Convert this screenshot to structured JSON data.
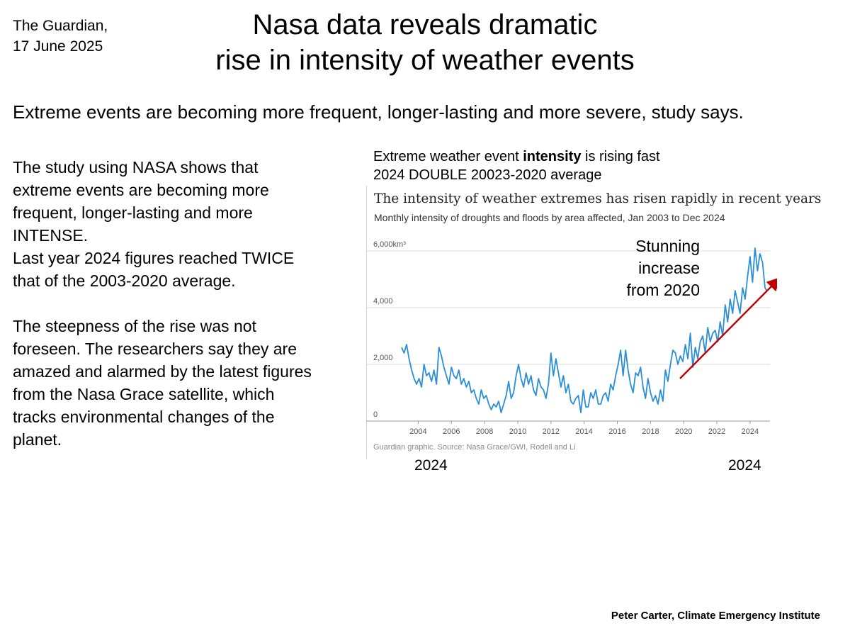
{
  "source": {
    "line1": "The Guardian,",
    "line2": "17 June 2025"
  },
  "title": {
    "line1": "Nasa data reveals dramatic",
    "line2": "rise in intensity of weather events"
  },
  "subtitle": "Extreme events are becoming more frequent, longer-lasting and more severe, study says.",
  "body": {
    "lines1": [
      "The study using NASA  shows that",
      "extreme events are becoming more",
      "frequent, longer-lasting and more",
      "INTENSE.",
      "Last year 2024  figures reached TWICE",
      "that of the 2003-2020 average."
    ],
    "lines2": [
      "The steepness of the rise was not",
      "foreseen. The researchers say they are",
      "amazed and alarmed by the latest figures",
      "from the Nasa Grace satellite, which",
      "tracks environmental changes of the",
      "planet."
    ]
  },
  "chart_caption": {
    "prefix": "Extreme weather event ",
    "bold": "intensity",
    "suffix": " is rising fast",
    "line2": "2024 DOUBLE 20023-2020 average"
  },
  "chart_data": {
    "type": "line",
    "title": "The intensity of weather extremes has risen rapidly in recent years",
    "subtitle": "Monthly intensity of droughts and floods by area affected, Jan 2003 to Dec 2024",
    "source_note": "Guardian graphic. Source: Nasa Grace/GWI, Rodell and Li",
    "xlabel": "",
    "ylabel": "",
    "xlim": [
      2003,
      2025.2
    ],
    "ylim": [
      0,
      6000
    ],
    "yticks": [
      {
        "value": 0,
        "label": "0"
      },
      {
        "value": 2000,
        "label": "2,000"
      },
      {
        "value": 4000,
        "label": "4,000"
      },
      {
        "value": 6000,
        "label": "6,000km³"
      }
    ],
    "xticks": [
      2004,
      2006,
      2008,
      2010,
      2012,
      2014,
      2016,
      2018,
      2020,
      2022,
      2024
    ],
    "xtick_labels": [
      "2004",
      "2006",
      "2008",
      "2010",
      "2012",
      "2014",
      "2016",
      "2018",
      "2020",
      "2022",
      "2024"
    ],
    "series": [
      {
        "name": "Monthly intensity",
        "color": "#2a8fd6",
        "x": [
          2003.0,
          2003.15,
          2003.3,
          2003.45,
          2003.6,
          2003.75,
          2003.9,
          2004.05,
          2004.2,
          2004.35,
          2004.5,
          2004.65,
          2004.8,
          2004.95,
          2005.1,
          2005.25,
          2005.4,
          2005.55,
          2005.7,
          2005.85,
          2006.0,
          2006.15,
          2006.3,
          2006.45,
          2006.6,
          2006.75,
          2006.9,
          2007.05,
          2007.2,
          2007.35,
          2007.5,
          2007.65,
          2007.8,
          2007.95,
          2008.1,
          2008.25,
          2008.4,
          2008.55,
          2008.7,
          2008.85,
          2009.0,
          2009.15,
          2009.3,
          2009.45,
          2009.6,
          2009.75,
          2009.9,
          2010.05,
          2010.2,
          2010.35,
          2010.5,
          2010.65,
          2010.8,
          2010.95,
          2011.1,
          2011.25,
          2011.4,
          2011.55,
          2011.7,
          2011.85,
          2012.0,
          2012.15,
          2012.3,
          2012.45,
          2012.6,
          2012.75,
          2012.9,
          2013.05,
          2013.2,
          2013.35,
          2013.5,
          2013.65,
          2013.8,
          2013.95,
          2014.1,
          2014.25,
          2014.4,
          2014.55,
          2014.7,
          2014.85,
          2015.0,
          2015.15,
          2015.3,
          2015.45,
          2015.6,
          2015.75,
          2015.9,
          2016.05,
          2016.2,
          2016.35,
          2016.5,
          2016.65,
          2016.8,
          2016.95,
          2017.1,
          2017.25,
          2017.4,
          2017.55,
          2017.7,
          2017.85,
          2018.0,
          2018.15,
          2018.3,
          2018.45,
          2018.6,
          2018.75,
          2018.9,
          2019.05,
          2019.2,
          2019.35,
          2019.5,
          2019.65,
          2019.8,
          2019.95,
          2020.1,
          2020.25,
          2020.4,
          2020.55,
          2020.7,
          2020.85,
          2021.0,
          2021.15,
          2021.3,
          2021.45,
          2021.6,
          2021.75,
          2021.9,
          2022.05,
          2022.2,
          2022.35,
          2022.5,
          2022.65,
          2022.8,
          2022.95,
          2023.1,
          2023.25,
          2023.4,
          2023.55,
          2023.7,
          2023.85,
          2024.0,
          2024.15,
          2024.3,
          2024.45,
          2024.6,
          2024.75,
          2024.9,
          2025.0
        ],
        "y": [
          2600,
          2400,
          2700,
          2200,
          1800,
          1500,
          1300,
          1500,
          1200,
          2000,
          1600,
          1700,
          1400,
          1800,
          1300,
          2600,
          2300,
          1900,
          1600,
          1300,
          1900,
          1600,
          1500,
          1800,
          1300,
          1500,
          1200,
          1400,
          1000,
          1100,
          800,
          600,
          1100,
          800,
          900,
          600,
          400,
          600,
          500,
          700,
          300,
          600,
          900,
          1400,
          800,
          1000,
          1600,
          2000,
          1500,
          1200,
          1700,
          1300,
          1600,
          1100,
          900,
          1500,
          1200,
          1100,
          800,
          1300,
          2400,
          1600,
          2200,
          1700,
          1200,
          1600,
          1000,
          1300,
          700,
          600,
          800,
          900,
          300,
          1100,
          500,
          500,
          1000,
          800,
          1100,
          600,
          600,
          900,
          1000,
          700,
          1300,
          1100,
          1600,
          2000,
          2500,
          1600,
          2500,
          1800,
          1300,
          1000,
          1700,
          1600,
          1900,
          1200,
          800,
          1500,
          1000,
          700,
          900,
          600,
          1100,
          700,
          1800,
          1400,
          2000,
          2500,
          2400,
          2000,
          2300,
          2100,
          2700,
          2200,
          3100,
          1900,
          2600,
          2200,
          2800,
          3000,
          2400,
          3300,
          2800,
          3100,
          3200,
          2800,
          3500,
          3000,
          4100,
          3500,
          4300,
          3800,
          4600,
          4200,
          3800,
          4700,
          4300,
          5100,
          5800,
          4900,
          6100,
          5300,
          5900,
          5600,
          4700,
          4600
        ]
      }
    ]
  },
  "annotation": [
    "Stunning",
    "increase",
    "from 2020"
  ],
  "year_labels": {
    "left": "2024",
    "right": "2024"
  },
  "colors": {
    "line": "#2a8fd6",
    "arrow": "#c00000",
    "grid": "#dcdcdc",
    "axis": "#999999",
    "tick_text": "#555555"
  },
  "credit": "Peter Carter, Climate Emergency Institute"
}
